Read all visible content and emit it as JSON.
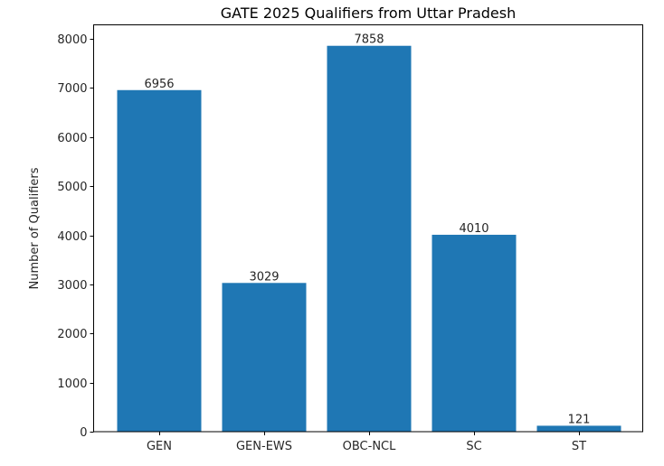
{
  "chart_data": {
    "type": "bar",
    "title": "GATE 2025 Qualifiers from Uttar Pradesh",
    "xlabel": "",
    "ylabel": "Number of Qualifiers",
    "categories": [
      "GEN",
      "GEN-EWS",
      "OBC-NCL",
      "SC",
      "ST"
    ],
    "values": [
      6956,
      3029,
      7858,
      4010,
      121
    ],
    "data_labels": [
      "6956",
      "3029",
      "7858",
      "4010",
      "121"
    ],
    "ylim": [
      0,
      8300
    ],
    "yticks": [
      0,
      1000,
      2000,
      3000,
      4000,
      5000,
      6000,
      7000,
      8000
    ],
    "ytick_labels": [
      "0",
      "1000",
      "2000",
      "3000",
      "4000",
      "5000",
      "6000",
      "7000",
      "8000"
    ],
    "grid": false,
    "legend": null,
    "bar_color": "#1f77b4"
  }
}
